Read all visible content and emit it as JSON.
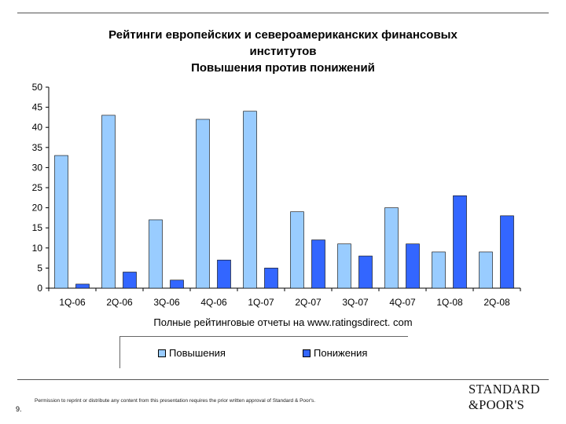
{
  "chart_data": {
    "type": "bar",
    "title_lines": [
      "Рейтинги европейских и североамериканских финансовых",
      "институтов",
      "Повышения против понижений"
    ],
    "categories": [
      "1Q-06",
      "2Q-06",
      "3Q-06",
      "4Q-06",
      "1Q-07",
      "2Q-07",
      "3Q-07",
      "4Q-07",
      "1Q-08",
      "2Q-08"
    ],
    "series": [
      {
        "name": "Повышения",
        "color": "#99ccff",
        "values": [
          33,
          43,
          17,
          42,
          44,
          19,
          11,
          20,
          9,
          9
        ]
      },
      {
        "name": "Понижения",
        "color": "#3366ff",
        "values": [
          1,
          4,
          2,
          7,
          5,
          12,
          8,
          11,
          23,
          18
        ]
      }
    ],
    "ylim": [
      0,
      50
    ],
    "yticks": [
      0,
      5,
      10,
      15,
      20,
      25,
      30,
      35,
      40,
      45,
      50
    ],
    "xlabel": "Полные рейтинговые отчеты на www.ratingsdirect. com",
    "ylabel": "",
    "legend_position": "bottom"
  },
  "footer": {
    "page_number": "9.",
    "permission": "Permission to reprint or distribute any content from this presentation requires the prior written approval of Standard & Poor's.",
    "logo_line1": "STANDARD",
    "logo_line2": "&POOR'S"
  }
}
